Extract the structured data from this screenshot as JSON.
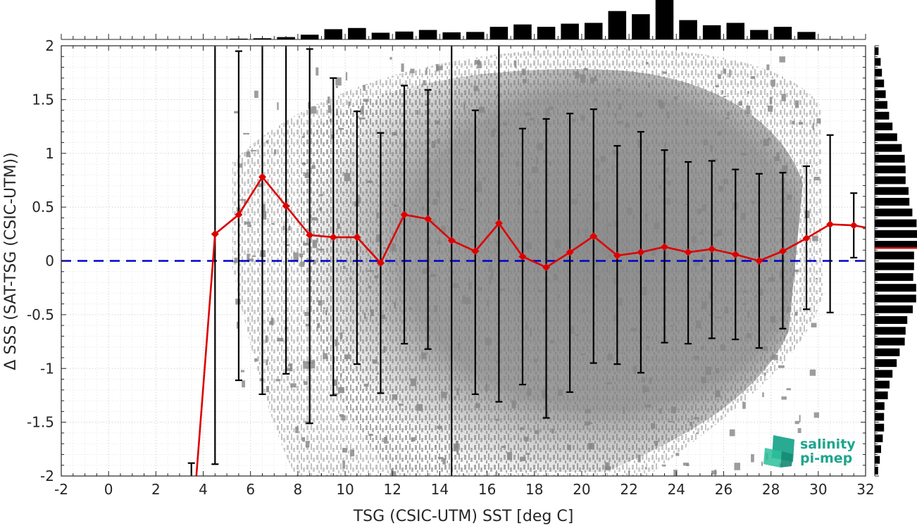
{
  "chart_data": {
    "type": "scatter",
    "xlabel": "TSG (CSIC-UTM) SST [deg C]",
    "ylabel": "Δ SSS (SAT-TSG (CSIC-UTM))",
    "xlim": [
      -2,
      32
    ],
    "ylim": [
      -2,
      2
    ],
    "xticks": [
      -2,
      0,
      2,
      4,
      6,
      8,
      10,
      12,
      14,
      16,
      18,
      20,
      22,
      24,
      26,
      28,
      30,
      32
    ],
    "yticks": [
      -2,
      -1.5,
      -1,
      -0.5,
      0,
      0.5,
      1,
      1.5,
      2
    ],
    "grid": true,
    "zero_line": {
      "y": 0,
      "color": "#0000cc",
      "style": "dashed"
    },
    "scatter_color": "#808080",
    "mean_color": "#dd0000",
    "errorbar_color": "#000000",
    "binned_means": {
      "x": [
        3.5,
        4.5,
        5.5,
        6.5,
        7.5,
        8.5,
        9.5,
        10.5,
        11.5,
        12.5,
        13.5,
        14.5,
        15.5,
        16.5,
        17.5,
        18.5,
        19.5,
        20.5,
        21.5,
        22.5,
        23.5,
        24.5,
        25.5,
        26.5,
        27.5,
        28.5,
        29.5,
        30.5,
        31.5,
        32
      ],
      "mean": [
        -2.6,
        0.25,
        0.43,
        0.78,
        0.51,
        0.24,
        0.22,
        0.22,
        -0.02,
        0.43,
        0.39,
        0.19,
        0.09,
        0.35,
        0.04,
        -0.06,
        0.08,
        0.23,
        0.05,
        0.08,
        0.13,
        0.08,
        0.11,
        0.06,
        0.0,
        0.09,
        0.21,
        0.34,
        0.33,
        0.31
      ],
      "upper": [
        null,
        2.6,
        1.95,
        2.6,
        2.6,
        1.97,
        1.7,
        1.39,
        1.19,
        1.63,
        1.59,
        2.6,
        1.4,
        2.6,
        1.23,
        1.32,
        1.37,
        1.41,
        1.07,
        1.2,
        1.03,
        0.92,
        0.93,
        0.85,
        0.81,
        0.82,
        0.88,
        1.17,
        0.63,
        null
      ],
      "lower": [
        -1.88,
        -1.89,
        -1.11,
        -1.24,
        -1.05,
        -1.51,
        -1.25,
        -0.96,
        -1.23,
        -0.77,
        -0.82,
        -2.6,
        -1.24,
        -1.31,
        -1.15,
        -1.46,
        -1.22,
        -0.95,
        -0.96,
        -1.04,
        -0.76,
        -0.77,
        -0.72,
        -0.73,
        -0.81,
        -0.63,
        -0.45,
        -0.48,
        0.03,
        null
      ]
    },
    "top_histogram": {
      "bin_centers": [
        -1.5,
        -0.5,
        0.5,
        1.5,
        2.5,
        3.5,
        4.5,
        5.5,
        6.5,
        7.5,
        8.5,
        9.5,
        10.5,
        11.5,
        12.5,
        13.5,
        14.5,
        15.5,
        16.5,
        17.5,
        18.5,
        19.5,
        20.5,
        21.5,
        22.5,
        23.5,
        24.5,
        25.5,
        26.5,
        27.5,
        28.5,
        29.5,
        30.5,
        31.5
      ],
      "relative_counts": [
        0,
        0,
        0,
        0,
        0,
        0,
        0,
        0.02,
        0.03,
        0.06,
        0.12,
        0.26,
        0.29,
        0.17,
        0.2,
        0.24,
        0.18,
        0.19,
        0.32,
        0.38,
        0.32,
        0.4,
        0.42,
        0.72,
        0.64,
        1.0,
        0.49,
        0.36,
        0.42,
        0.24,
        0.32,
        0.19,
        0.01,
        0
      ]
    },
    "right_histogram": {
      "bin_centers": [
        1.95,
        1.85,
        1.75,
        1.65,
        1.55,
        1.45,
        1.35,
        1.25,
        1.15,
        1.05,
        0.95,
        0.85,
        0.75,
        0.65,
        0.55,
        0.45,
        0.35,
        0.25,
        0.15,
        0.05,
        -0.05,
        -0.15,
        -0.25,
        -0.35,
        -0.45,
        -0.55,
        -0.65,
        -0.75,
        -0.85,
        -0.95,
        -1.05,
        -1.15,
        -1.25,
        -1.35,
        -1.45,
        -1.55,
        -1.65,
        -1.75,
        -1.85,
        -1.95
      ],
      "relative_counts": [
        0.09,
        0.14,
        0.17,
        0.22,
        0.26,
        0.3,
        0.34,
        0.42,
        0.53,
        0.64,
        0.71,
        0.73,
        0.73,
        0.8,
        0.82,
        0.89,
        0.99,
        1.0,
        1.0,
        0.93,
        0.93,
        0.91,
        0.98,
        0.98,
        0.9,
        0.77,
        0.73,
        0.71,
        0.59,
        0.52,
        0.42,
        0.35,
        0.31,
        0.23,
        0.22,
        0.22,
        0.19,
        0.15,
        0.12,
        0.08
      ],
      "mean_line": 0.12
    }
  },
  "logo": {
    "line1": "salinity",
    "line2": "pi-mep",
    "color": "#1fa58c"
  }
}
